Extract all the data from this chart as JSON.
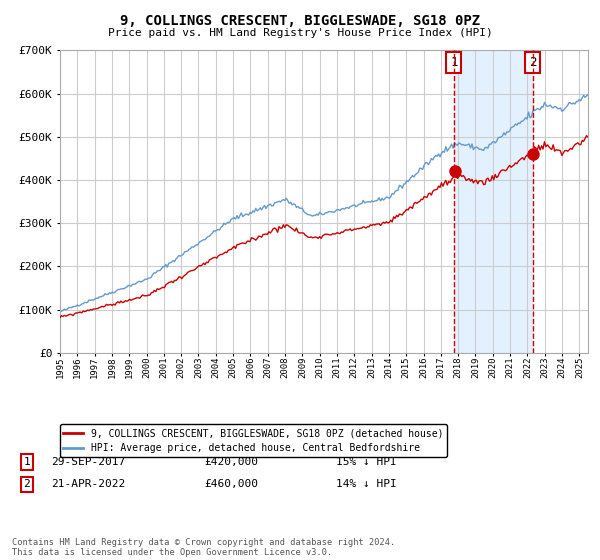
{
  "title": "9, COLLINGS CRESCENT, BIGGLESWADE, SG18 0PZ",
  "subtitle": "Price paid vs. HM Land Registry's House Price Index (HPI)",
  "legend_line1": "9, COLLINGS CRESCENT, BIGGLESWADE, SG18 0PZ (detached house)",
  "legend_line2": "HPI: Average price, detached house, Central Bedfordshire",
  "annotation1_date": "29-SEP-2017",
  "annotation1_price": "£420,000",
  "annotation1_hpi": "15% ↓ HPI",
  "annotation2_date": "21-APR-2022",
  "annotation2_price": "£460,000",
  "annotation2_hpi": "14% ↓ HPI",
  "footnote": "Contains HM Land Registry data © Crown copyright and database right 2024.\nThis data is licensed under the Open Government Licence v3.0.",
  "sale1_year": 2017.75,
  "sale1_value": 420000,
  "sale2_year": 2022.3,
  "sale2_value": 460000,
  "red_line_color": "#cc0000",
  "blue_line_color": "#6699cc",
  "bg_shade_color": "#ddeeff",
  "vline_color": "#cc0000",
  "grid_color": "#cccccc",
  "ylim": [
    0,
    700000
  ],
  "xlim_start": 1995.0,
  "xlim_end": 2025.5
}
